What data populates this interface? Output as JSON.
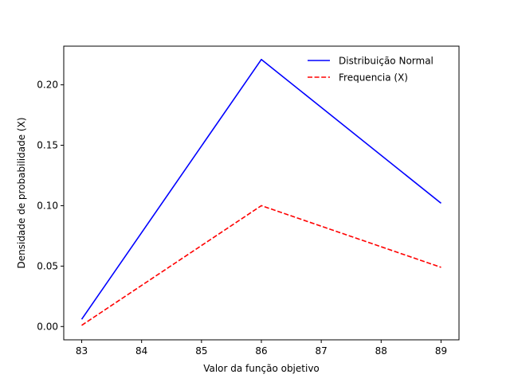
{
  "chart_data": {
    "type": "line",
    "title": "",
    "xlabel": "Valor da função objetivo",
    "ylabel": "Densidade de probabilidade (X)",
    "xlim": [
      82.7,
      89.3
    ],
    "ylim": [
      -0.011,
      0.232
    ],
    "xticks": [
      83,
      84,
      85,
      86,
      87,
      88,
      89
    ],
    "xtick_labels": [
      "83",
      "84",
      "85",
      "86",
      "87",
      "88",
      "89"
    ],
    "yticks": [
      0.0,
      0.05,
      0.1,
      0.15,
      0.2
    ],
    "ytick_labels": [
      "0.00",
      "0.05",
      "0.10",
      "0.15",
      "0.20"
    ],
    "grid": false,
    "legend_position": "top-right",
    "series": [
      {
        "name": "Distribuição Normal",
        "color": "#0000ff",
        "dash": "solid",
        "x": [
          83,
          86,
          89
        ],
        "y": [
          0.006,
          0.221,
          0.102
        ]
      },
      {
        "name": "Frequencia (X)",
        "color": "#ff0000",
        "dash": "dashed",
        "x": [
          83,
          86,
          89
        ],
        "y": [
          0.001,
          0.1,
          0.049
        ]
      }
    ]
  }
}
